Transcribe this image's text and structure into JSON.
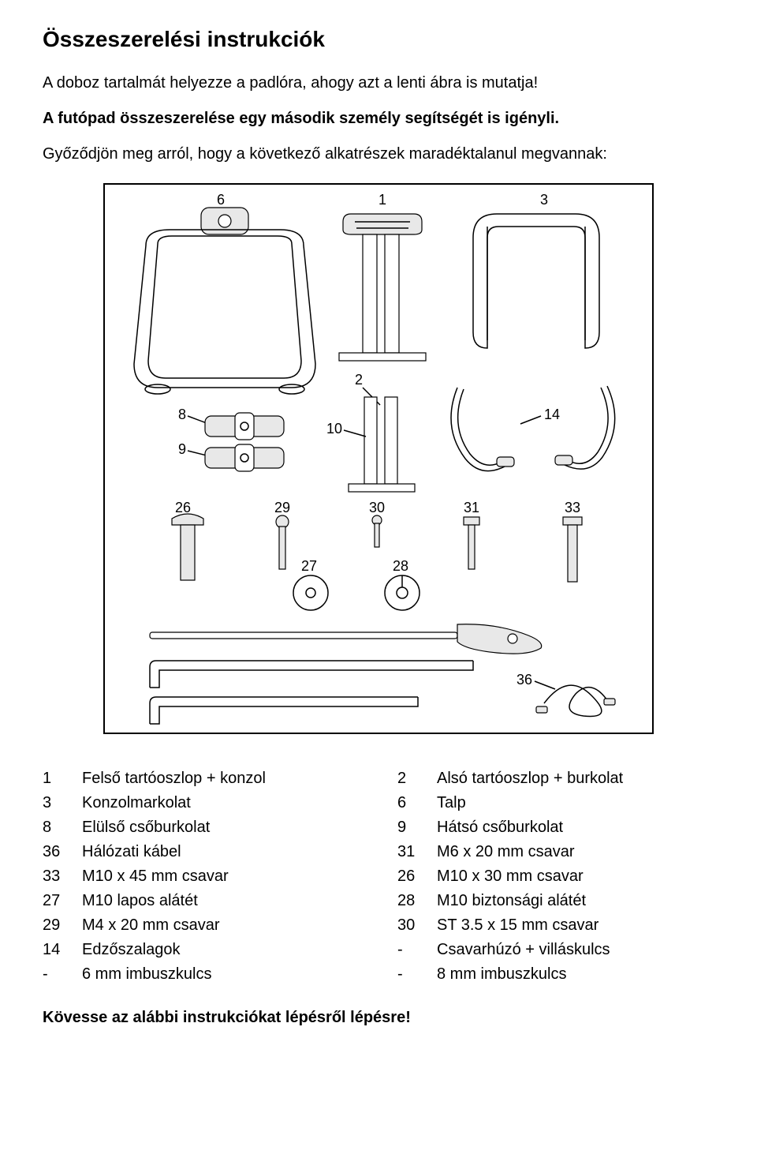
{
  "title": "Összeszerelési instrukciók",
  "para1": "A doboz tartalmát helyezze a padlóra, ahogy azt a lenti ábra is mutatja!",
  "para2": "A futópad összeszerelése egy második személy segítségét is igényli.",
  "para3": "Győződjön meg arról, hogy a következő alkatrészek maradéktalanul megvannak:",
  "parts_left": [
    {
      "n": "1",
      "name": "Felső tartóoszlop + konzol"
    },
    {
      "n": "3",
      "name": "Konzolmarkolat"
    },
    {
      "n": "8",
      "name": "Elülső csőburkolat"
    },
    {
      "n": "36",
      "name": "Hálózati kábel"
    },
    {
      "n": "33",
      "name": "M10 x 45 mm csavar"
    },
    {
      "n": "27",
      "name": "M10 lapos alátét"
    },
    {
      "n": "29",
      "name": "M4 x 20 mm csavar"
    },
    {
      "n": "14",
      "name": "Edzőszalagok"
    },
    {
      "n": "-",
      "name": "6 mm imbuszkulcs"
    }
  ],
  "parts_right": [
    {
      "n": "2",
      "name": "Alsó tartóoszlop + burkolat"
    },
    {
      "n": "6",
      "name": "Talp"
    },
    {
      "n": "9",
      "name": "Hátsó csőburkolat"
    },
    {
      "n": "31",
      "name": "M6 x 20 mm csavar"
    },
    {
      "n": "26",
      "name": "M10 x 30 mm csavar"
    },
    {
      "n": "28",
      "name": "M10 biztonsági alátét"
    },
    {
      "n": "30",
      "name": "ST 3.5 x 15 mm csavar"
    },
    {
      "n": "-",
      "name": "Csavarhúzó + villáskulcs"
    },
    {
      "n": "-",
      "name": "8 mm imbuszkulcs"
    }
  ],
  "follow": "Kövesse az alábbi instrukciókat lépésről lépésre!",
  "diagram": {
    "labels": [
      "1",
      "2",
      "3",
      "6",
      "8",
      "9",
      "10",
      "14",
      "26",
      "27",
      "28",
      "29",
      "30",
      "31",
      "33",
      "36"
    ],
    "colors": {
      "frame": "#000000",
      "bg": "#ffffff",
      "shade": "#e8e8e8"
    }
  }
}
